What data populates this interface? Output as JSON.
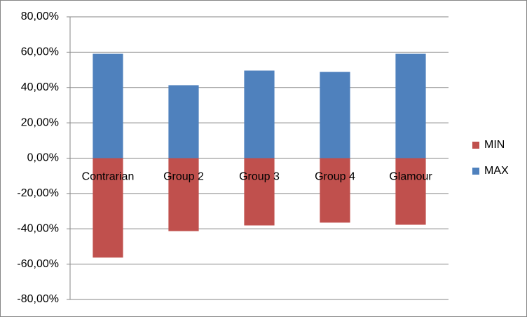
{
  "chart_data": {
    "type": "bar",
    "categories": [
      "Contrarian",
      "Group 2",
      "Group 3",
      "Group 4",
      "Glamour"
    ],
    "series": [
      {
        "name": "MIN",
        "color": "#c0504d",
        "values": [
          -56.3,
          -41.3,
          -38.1,
          -36.5,
          -37.7
        ]
      },
      {
        "name": "MAX",
        "color": "#4f81bd",
        "values": [
          59.1,
          41.3,
          49.6,
          48.8,
          59.1
        ]
      }
    ],
    "ylim": [
      -80,
      80
    ],
    "yticks": [
      {
        "value": -80,
        "label": "-80,00%"
      },
      {
        "value": -60,
        "label": "-60,00%"
      },
      {
        "value": -40,
        "label": "-40,00%"
      },
      {
        "value": -20,
        "label": "-20,00%"
      },
      {
        "value": 0,
        "label": "0,00%"
      },
      {
        "value": 20,
        "label": "20,00%"
      },
      {
        "value": 40,
        "label": "40,00%"
      },
      {
        "value": 60,
        "label": "60,00%"
      },
      {
        "value": 80,
        "label": "80,00%"
      }
    ],
    "grid": true,
    "legend": "right"
  }
}
